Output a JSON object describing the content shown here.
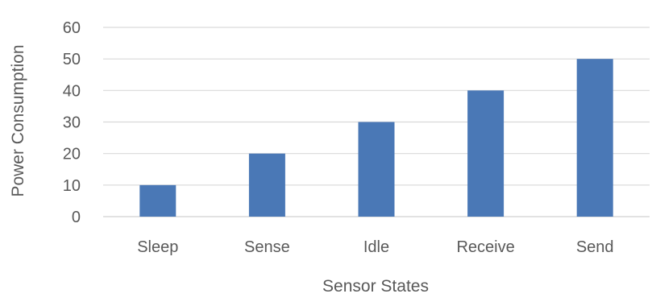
{
  "chart_data": {
    "type": "bar",
    "title": "",
    "xlabel": "Sensor States",
    "ylabel": "Power Consumption",
    "categories": [
      "Sleep",
      "Sense",
      "Idle",
      "Receive",
      "Send"
    ],
    "values": [
      10,
      20,
      30,
      40,
      50
    ],
    "ylim": [
      0,
      60
    ],
    "yticks": [
      0,
      10,
      20,
      30,
      40,
      50,
      60
    ],
    "grid": true,
    "legend": "none",
    "bar_color": "#4a78b6",
    "grid_color": "#d9d9d9",
    "text_color": "#595959"
  }
}
